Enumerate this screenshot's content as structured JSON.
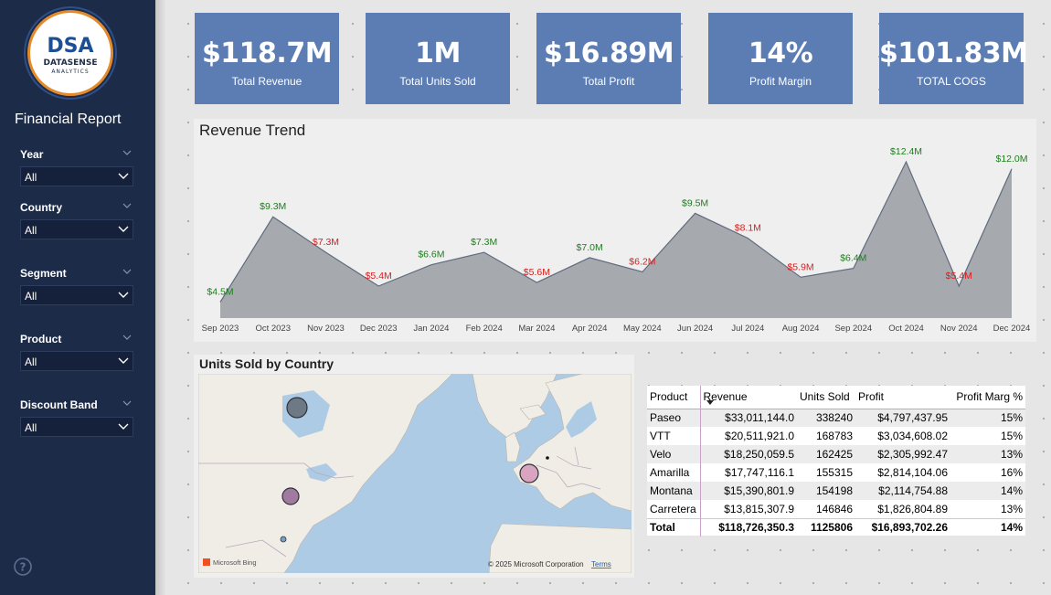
{
  "sidebar": {
    "logo_mark": "DSA",
    "logo_name": "DATASENSE",
    "logo_sub": "ANALYTICS",
    "report_title": "Financial Report",
    "slicers": [
      {
        "label": "Year",
        "value": "All"
      },
      {
        "label": "Country",
        "value": "All"
      },
      {
        "label": "Segment",
        "value": "All"
      },
      {
        "label": "Product",
        "value": "All"
      },
      {
        "label": "Discount Band",
        "value": "All"
      }
    ]
  },
  "kpis": [
    {
      "value": "$118.7M",
      "caption": "Total Revenue"
    },
    {
      "value": "1M",
      "caption": "Total Units Sold"
    },
    {
      "value": "$16.89M",
      "caption": "Total Profit"
    },
    {
      "value": "14%",
      "caption": "Profit Margin"
    },
    {
      "value": "$101.83M",
      "caption": "TOTAL COGS"
    }
  ],
  "colors": {
    "sidebar": "#1c2b48",
    "kpi_card": "#5b7db4",
    "area_fill": "#a6aaaf",
    "area_line": "#5f6b7d",
    "label_up": "#1e7d1e",
    "label_down": "#d42020",
    "bubble_blue": "#6d7a86",
    "bubble_pink": "#c99ab7",
    "bubble_purple": "#a27a9f"
  },
  "chart_data": {
    "type": "area",
    "title": "Revenue Trend",
    "categories": [
      "Sep 2023",
      "Oct 2023",
      "Nov 2023",
      "Dec 2023",
      "Jan 2024",
      "Feb 2024",
      "Mar 2024",
      "Apr 2024",
      "May 2024",
      "Jun 2024",
      "Jul 2024",
      "Aug 2024",
      "Sep 2024",
      "Oct 2024",
      "Nov 2024",
      "Dec 2024"
    ],
    "series": [
      {
        "values": [
          4.5,
          9.3,
          7.3,
          5.4,
          6.6,
          7.3,
          5.6,
          7.0,
          6.2,
          9.5,
          8.1,
          5.9,
          6.4,
          12.4,
          5.4,
          12.0
        ]
      }
    ],
    "data_labels": [
      "$4.5M",
      "$9.3M",
      "$7.3M",
      "$5.4M",
      "$6.6M",
      "$7.3M",
      "$5.6M",
      "$7.0M",
      "$6.2M",
      "$9.5M",
      "$8.1M",
      "$5.9M",
      "$6.4M",
      "$12.4M",
      "$5.4M",
      "$12.0M"
    ],
    "label_direction": [
      "up",
      "up",
      "down",
      "down",
      "up",
      "up",
      "down",
      "up",
      "down",
      "up",
      "down",
      "down",
      "up",
      "up",
      "down",
      "up"
    ],
    "ylim": [
      3.6,
      12.4
    ],
    "grid": false
  },
  "map": {
    "title": "Units Sold by Country",
    "attribution_left": "Microsoft Bing",
    "attribution_right": "© 2025 Microsoft Corporation",
    "terms": "Terms"
  },
  "table": {
    "headers": [
      "Product",
      "Revenue",
      "Units Sold",
      "Profit",
      "Profit Marg %"
    ],
    "rows": [
      [
        "Paseo",
        "$33,011,144.0",
        "338240",
        "$4,797,437.95",
        "15%"
      ],
      [
        "VTT",
        "$20,511,921.0",
        "168783",
        "$3,034,608.02",
        "15%"
      ],
      [
        "Velo",
        "$18,250,059.5",
        "162425",
        "$2,305,992.47",
        "13%"
      ],
      [
        "Amarilla",
        "$17,747,116.1",
        "155315",
        "$2,814,104.06",
        "16%"
      ],
      [
        "Montana",
        "$15,390,801.9",
        "154198",
        "$2,114,754.88",
        "14%"
      ],
      [
        "Carretera",
        "$13,815,307.9",
        "146846",
        "$1,826,804.89",
        "13%"
      ]
    ],
    "total": [
      "Total",
      "$118,726,350.3",
      "1125806",
      "$16,893,702.26",
      "14%"
    ]
  }
}
